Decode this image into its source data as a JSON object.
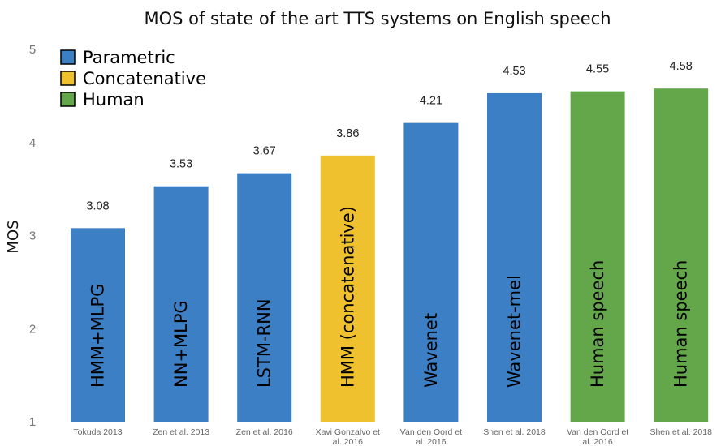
{
  "chart_data": {
    "type": "bar",
    "title": "MOS of state of the art TTS systems on English speech",
    "ylabel": "MOS",
    "xlabel": "",
    "ylim": [
      1,
      5
    ],
    "yticks": [
      "1",
      "2",
      "3",
      "4",
      "5"
    ],
    "grid": false,
    "legend_position": "top-left",
    "legend": [
      {
        "label": "Parametric",
        "color": "#3d7fc5"
      },
      {
        "label": "Concatenative",
        "color": "#f0c12f"
      },
      {
        "label": "Human",
        "color": "#63a74a"
      }
    ],
    "bars": [
      {
        "system": "HMM+MLPG",
        "source": [
          "Tokuda 2013"
        ],
        "value": 3.08,
        "value_label": "3.08",
        "group": "Parametric"
      },
      {
        "system": "NN+MLPG",
        "source": [
          "Zen et al. 2013"
        ],
        "value": 3.53,
        "value_label": "3.53",
        "group": "Parametric"
      },
      {
        "system": "LSTM-RNN",
        "source": [
          "Zen et al. 2016"
        ],
        "value": 3.67,
        "value_label": "3.67",
        "group": "Parametric"
      },
      {
        "system": "HMM (concatenative)",
        "source": [
          "Xavi Gonzalvo et",
          "al. 2016"
        ],
        "value": 3.86,
        "value_label": "3.86",
        "group": "Concatenative"
      },
      {
        "system": "Wavenet",
        "source": [
          "Van den Oord et",
          "al. 2016"
        ],
        "value": 4.21,
        "value_label": "4.21",
        "group": "Parametric"
      },
      {
        "system": "Wavenet-mel",
        "source": [
          "Shen et al. 2018"
        ],
        "value": 4.53,
        "value_label": "4.53",
        "group": "Parametric"
      },
      {
        "system": "Human speech",
        "source": [
          "Van den Oord et",
          "al. 2016"
        ],
        "value": 4.55,
        "value_label": "4.55",
        "group": "Human"
      },
      {
        "system": "Human speech",
        "source": [
          "Shen et al. 2018"
        ],
        "value": 4.58,
        "value_label": "4.58",
        "group": "Human"
      }
    ]
  }
}
